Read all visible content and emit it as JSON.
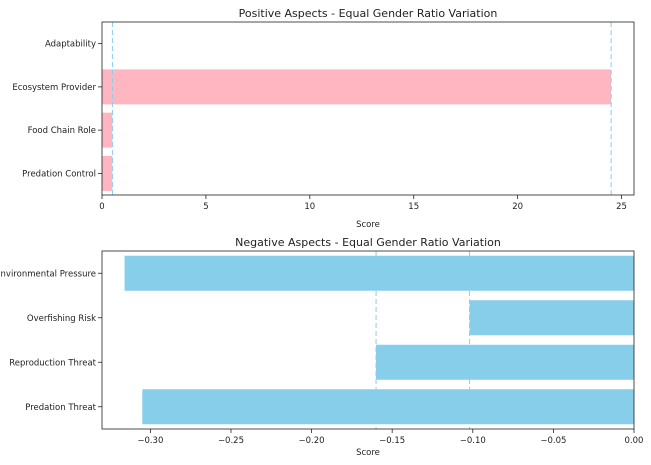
{
  "chart_data": [
    {
      "type": "bar",
      "orientation": "horizontal",
      "title": "Positive Aspects - Equal Gender Ratio Variation",
      "xlabel": "Score",
      "ylabel": "",
      "categories": [
        "Predation Control",
        "Food Chain Role",
        "Ecosystem Provider",
        "Adaptability"
      ],
      "values": [
        0.5,
        0.5,
        24.5,
        0
      ],
      "xlim": [
        0,
        25.6
      ],
      "xticks": [
        "0",
        "5",
        "10",
        "15",
        "20",
        "25"
      ],
      "xtick_values": [
        0,
        5,
        10,
        15,
        20,
        25
      ],
      "reference_lines": [
        0.5,
        24.5
      ],
      "bar_color": "#FFB6C1",
      "line_color": "#87CEEB",
      "grid": false
    },
    {
      "type": "bar",
      "orientation": "horizontal",
      "title": "Negative Aspects - Equal Gender Ratio Variation",
      "xlabel": "Score",
      "ylabel": "",
      "categories": [
        "Predation Threat",
        "Reproduction Threat",
        "Overfishing Risk",
        "Environmental Pressure"
      ],
      "values": [
        -0.305,
        -0.16,
        -0.102,
        -0.316
      ],
      "xlim": [
        -0.33,
        0.0
      ],
      "xticks": [
        "−0.30",
        "−0.25",
        "−0.20",
        "−0.15",
        "−0.10",
        "−0.05",
        "0.00"
      ],
      "xtick_values": [
        -0.3,
        -0.25,
        -0.2,
        -0.15,
        -0.1,
        -0.05,
        0.0
      ],
      "reference_lines": [
        -0.16,
        -0.102
      ],
      "bar_color": "#87CEEB",
      "line_color": "#87CEEB",
      "grid": false
    }
  ]
}
